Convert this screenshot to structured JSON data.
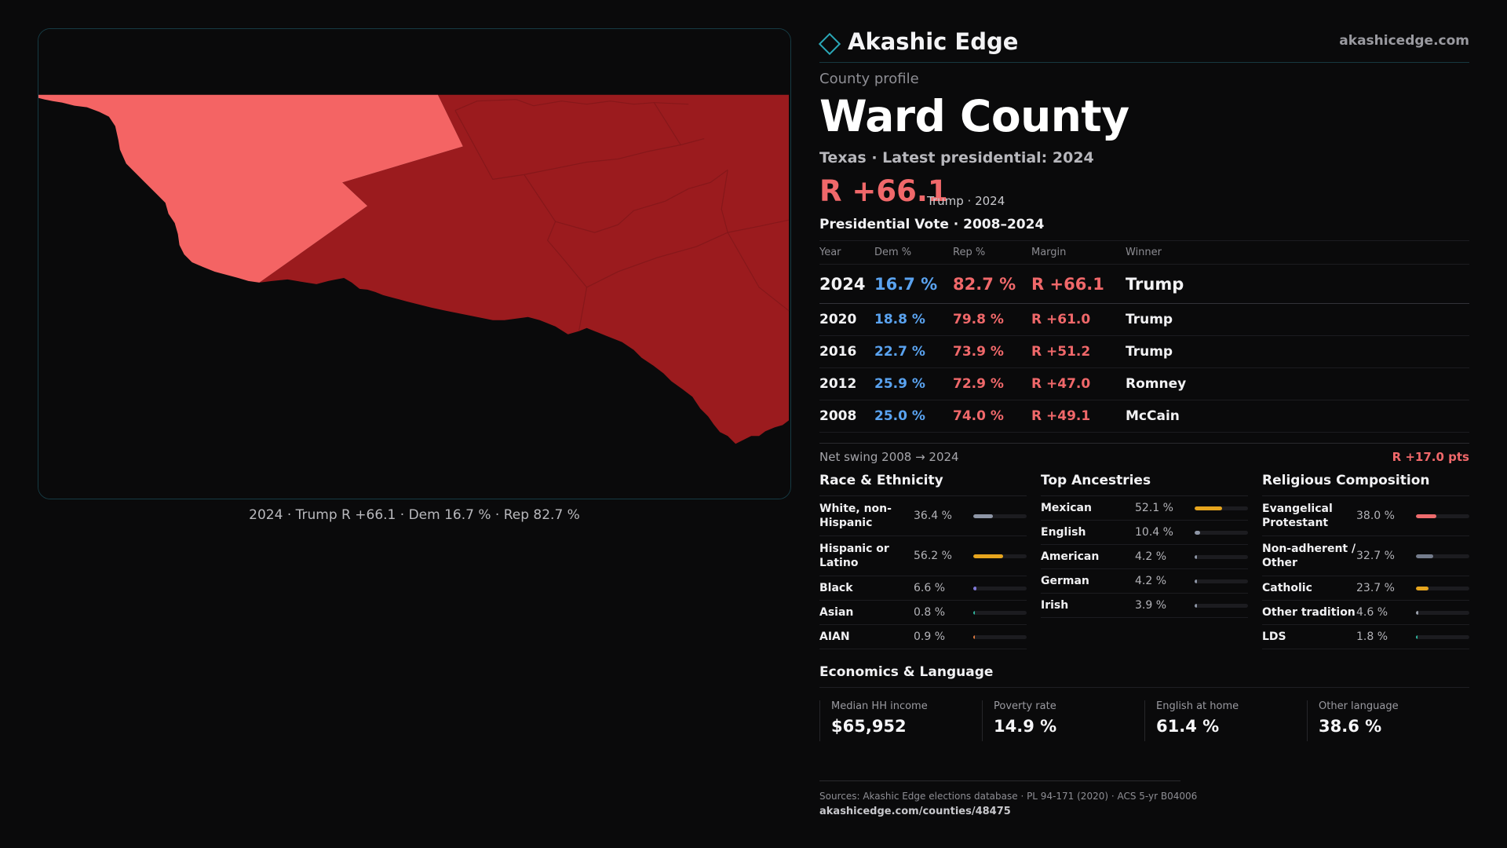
{
  "map": {
    "caption": "2024 · Trump R +66.1 · Dem 16.7 % · Rep 82.7 %",
    "colors": {
      "highlight": "#f46464",
      "region": "#9b1b1e",
      "background": "#0a0a0b",
      "frame": "#163b44"
    }
  },
  "header": {
    "brand": "Akashic Edge",
    "site": "akashicedge.com",
    "logo": "diamond-icon"
  },
  "profile": {
    "kicker": "County profile",
    "name": "Ward County",
    "subtitle": "Texas · Latest presidential: 2024",
    "margin": "R +66.1",
    "margin_note": "Trump · 2024"
  },
  "vote": {
    "title": "Presidential Vote · 2008–2024",
    "columns": [
      "Year",
      "Dem %",
      "Rep %",
      "Margin",
      "Winner"
    ],
    "rows": [
      {
        "year": "2024",
        "dem": "16.7 %",
        "rep": "82.7 %",
        "margin": "R +66.1",
        "winner": "Trump"
      },
      {
        "year": "2020",
        "dem": "18.8 %",
        "rep": "79.8 %",
        "margin": "R +61.0",
        "winner": "Trump"
      },
      {
        "year": "2016",
        "dem": "22.7 %",
        "rep": "73.9 %",
        "margin": "R +51.2",
        "winner": "Trump"
      },
      {
        "year": "2012",
        "dem": "25.9 %",
        "rep": "72.9 %",
        "margin": "R +47.0",
        "winner": "Romney"
      },
      {
        "year": "2008",
        "dem": "25.0 %",
        "rep": "74.0 %",
        "margin": "R +49.1",
        "winner": "McCain"
      }
    ],
    "swing_label": "Net swing 2008 → 2024",
    "swing_value": "R +17.0 pts"
  },
  "race": {
    "title": "Race & Ethnicity",
    "items": [
      {
        "label": "White, non-Hispanic",
        "value": "36.4 %",
        "fraction": 0.364,
        "color": "#8e96a6"
      },
      {
        "label": "Hispanic or Latino",
        "value": "56.2 %",
        "fraction": 0.562,
        "color": "#e6a51e"
      },
      {
        "label": "Black",
        "value": "6.6 %",
        "fraction": 0.066,
        "color": "#7f78d6"
      },
      {
        "label": "Asian",
        "value": "0.8 %",
        "fraction": 0.008,
        "color": "#2fb7a0"
      },
      {
        "label": "AIAN",
        "value": "0.9 %",
        "fraction": 0.009,
        "color": "#e07a3f"
      }
    ]
  },
  "ancestry": {
    "title": "Top Ancestries",
    "items": [
      {
        "label": "Mexican",
        "value": "52.1 %",
        "fraction": 0.521,
        "color": "#e6a51e"
      },
      {
        "label": "English",
        "value": "10.4 %",
        "fraction": 0.104,
        "color": "#8e96a6"
      },
      {
        "label": "American",
        "value": "4.2 %",
        "fraction": 0.042,
        "color": "#8e96a6"
      },
      {
        "label": "German",
        "value": "4.2 %",
        "fraction": 0.042,
        "color": "#8e96a6"
      },
      {
        "label": "Irish",
        "value": "3.9 %",
        "fraction": 0.039,
        "color": "#8e96a6"
      }
    ]
  },
  "religion": {
    "title": "Religious Composition",
    "items": [
      {
        "label": "Evangelical Protestant",
        "value": "38.0 %",
        "fraction": 0.38,
        "color": "#ee6b6d"
      },
      {
        "label": "Non-adherent / Other",
        "value": "32.7 %",
        "fraction": 0.327,
        "color": "#747c8c"
      },
      {
        "label": "Catholic",
        "value": "23.7 %",
        "fraction": 0.237,
        "color": "#e6a51e"
      },
      {
        "label": "Other tradition",
        "value": "4.6 %",
        "fraction": 0.046,
        "color": "#9aa0ac"
      },
      {
        "label": "LDS",
        "value": "1.8 %",
        "fraction": 0.018,
        "color": "#2fb7a0"
      }
    ]
  },
  "economics": {
    "title": "Economics & Language",
    "items": [
      {
        "label": "Median HH income",
        "value": "$65,952"
      },
      {
        "label": "Poverty rate",
        "value": "14.9 %"
      },
      {
        "label": "English at home",
        "value": "61.4 %"
      },
      {
        "label": "Other language",
        "value": "38.6 %"
      }
    ]
  },
  "sources": {
    "text": "Sources: Akashic Edge elections database · PL 94-171 (2020) · ACS 5-yr B04006",
    "url": "akashicedge.com/counties/48475"
  }
}
